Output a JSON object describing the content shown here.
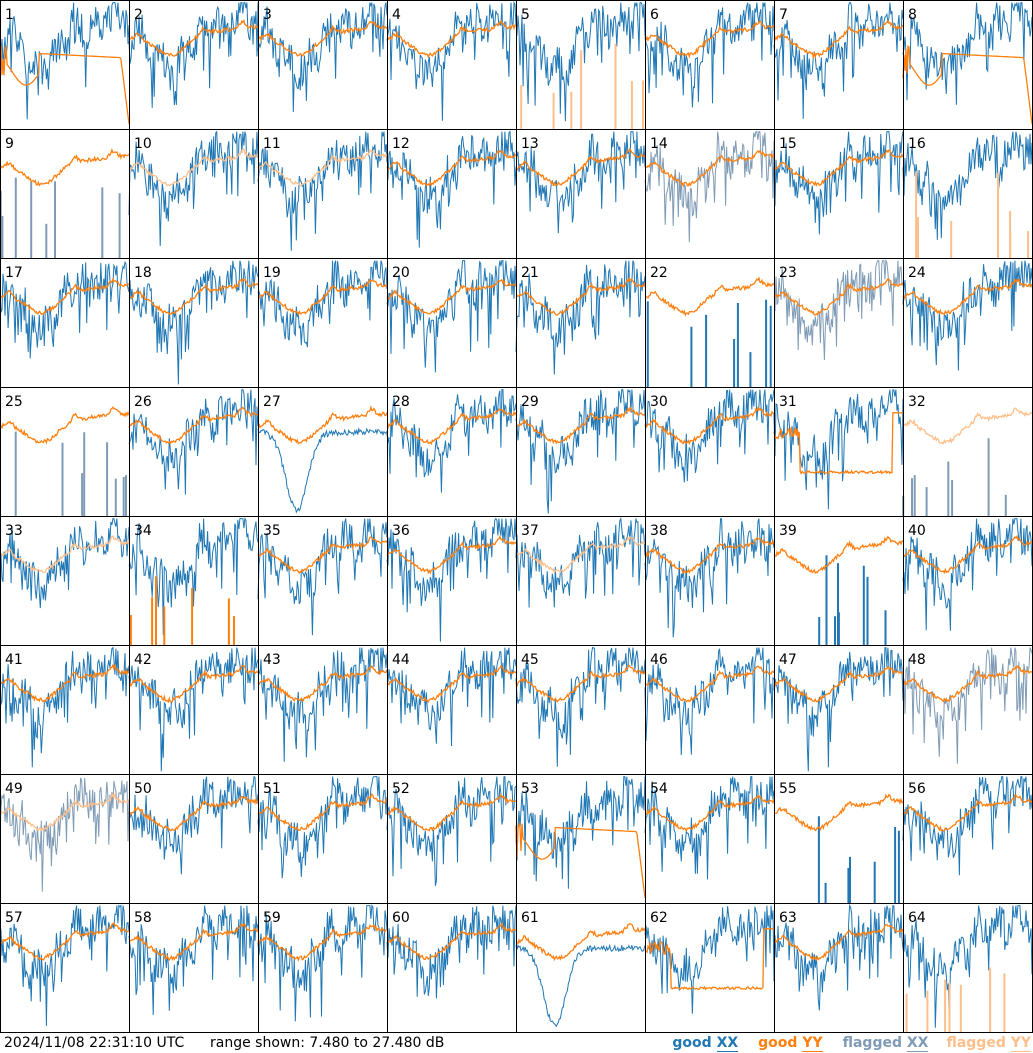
{
  "footer": {
    "timestamp": "2024/11/08 22:31:10 UTC",
    "range_text": "range shown: 7.480 to 27.480 dB"
  },
  "legend": [
    {
      "label": "good XX",
      "prefix": "good ",
      "suffix": "XX",
      "color": "#1f77b4"
    },
    {
      "label": "good YY",
      "prefix": "good ",
      "suffix": "YY",
      "color": "#ff7f0e"
    },
    {
      "label": "flagged XX",
      "prefix": "flagged ",
      "suffix": "XX",
      "color": "#7f9bb5"
    },
    {
      "label": "flagged YY",
      "prefix": "flagged ",
      "suffix": "YY",
      "color": "#ffbf8a"
    }
  ],
  "colors": {
    "good_xx": "#1f77b4",
    "good_yy": "#ff7f0e",
    "flagged_xx": "#7f9bb5",
    "flagged_yy": "#ffbf8a",
    "grid": "#000000"
  },
  "chart_data": {
    "type": "line",
    "layout": "8x8 small multiples",
    "y_range_db": [
      7.48,
      27.48
    ],
    "panels": [
      {
        "id": "1",
        "xx": "good",
        "yy": "good",
        "yy_shape": "hump_drop"
      },
      {
        "id": "2",
        "xx": "good",
        "yy": "good"
      },
      {
        "id": "3",
        "xx": "good",
        "yy": "good"
      },
      {
        "id": "4",
        "xx": "good",
        "yy": "good"
      },
      {
        "id": "5",
        "xx": "good",
        "yy": "flagged",
        "yy_shape": "spikes"
      },
      {
        "id": "6",
        "xx": "good",
        "yy": "good"
      },
      {
        "id": "7",
        "xx": "good",
        "yy": "good"
      },
      {
        "id": "8",
        "xx": "good",
        "yy": "good",
        "yy_shape": "hump_drop"
      },
      {
        "id": "9",
        "xx": "flagged",
        "yy": "good",
        "xx_shape": "spikes"
      },
      {
        "id": "10",
        "xx": "good",
        "yy": "flagged"
      },
      {
        "id": "11",
        "xx": "good",
        "yy": "flagged"
      },
      {
        "id": "12",
        "xx": "good",
        "yy": "good"
      },
      {
        "id": "13",
        "xx": "good",
        "yy": "good"
      },
      {
        "id": "14",
        "xx": "flagged",
        "yy": "good"
      },
      {
        "id": "15",
        "xx": "good",
        "yy": "good"
      },
      {
        "id": "16",
        "xx": "good",
        "yy": "flagged",
        "yy_shape": "spikes"
      },
      {
        "id": "17",
        "xx": "good",
        "yy": "good"
      },
      {
        "id": "18",
        "xx": "good",
        "yy": "good"
      },
      {
        "id": "19",
        "xx": "good",
        "yy": "good"
      },
      {
        "id": "20",
        "xx": "good",
        "yy": "good"
      },
      {
        "id": "21",
        "xx": "good",
        "yy": "good"
      },
      {
        "id": "22",
        "xx": "good",
        "yy": "good",
        "xx_shape": "spikes"
      },
      {
        "id": "23",
        "xx": "flagged",
        "yy": "good"
      },
      {
        "id": "24",
        "xx": "good",
        "yy": "good"
      },
      {
        "id": "25",
        "xx": "flagged",
        "yy": "good",
        "xx_shape": "spikes"
      },
      {
        "id": "26",
        "xx": "good",
        "yy": "good"
      },
      {
        "id": "27",
        "xx": "good",
        "yy": "good",
        "xx_shape": "dip"
      },
      {
        "id": "28",
        "xx": "good",
        "yy": "good"
      },
      {
        "id": "29",
        "xx": "good",
        "yy": "good"
      },
      {
        "id": "30",
        "xx": "good",
        "yy": "good"
      },
      {
        "id": "31",
        "xx": "good",
        "yy": "good",
        "yy_shape": "plateau"
      },
      {
        "id": "32",
        "xx": "flagged",
        "yy": "flagged",
        "xx_shape": "spikes"
      },
      {
        "id": "33",
        "xx": "good",
        "yy": "flagged"
      },
      {
        "id": "34",
        "xx": "good",
        "yy": "good",
        "yy_shape": "spikes"
      },
      {
        "id": "35",
        "xx": "good",
        "yy": "good"
      },
      {
        "id": "36",
        "xx": "good",
        "yy": "good"
      },
      {
        "id": "37",
        "xx": "good",
        "yy": "flagged"
      },
      {
        "id": "38",
        "xx": "good",
        "yy": "good"
      },
      {
        "id": "39",
        "xx": "good",
        "yy": "good",
        "xx_shape": "spikes"
      },
      {
        "id": "40",
        "xx": "good",
        "yy": "good"
      },
      {
        "id": "41",
        "xx": "good",
        "yy": "good"
      },
      {
        "id": "42",
        "xx": "good",
        "yy": "good"
      },
      {
        "id": "43",
        "xx": "good",
        "yy": "good"
      },
      {
        "id": "44",
        "xx": "good",
        "yy": "good"
      },
      {
        "id": "45",
        "xx": "good",
        "yy": "good"
      },
      {
        "id": "46",
        "xx": "good",
        "yy": "good"
      },
      {
        "id": "47",
        "xx": "good",
        "yy": "good"
      },
      {
        "id": "48",
        "xx": "flagged",
        "yy": "good"
      },
      {
        "id": "49",
        "xx": "flagged",
        "yy": "flagged"
      },
      {
        "id": "50",
        "xx": "good",
        "yy": "good"
      },
      {
        "id": "51",
        "xx": "good",
        "yy": "good"
      },
      {
        "id": "52",
        "xx": "good",
        "yy": "good"
      },
      {
        "id": "53",
        "xx": "good",
        "yy": "good",
        "yy_shape": "hump_drop"
      },
      {
        "id": "54",
        "xx": "good",
        "yy": "good"
      },
      {
        "id": "55",
        "xx": "good",
        "yy": "good",
        "xx_shape": "spikes"
      },
      {
        "id": "56",
        "xx": "good",
        "yy": "good"
      },
      {
        "id": "57",
        "xx": "good",
        "yy": "good"
      },
      {
        "id": "58",
        "xx": "good",
        "yy": "good"
      },
      {
        "id": "59",
        "xx": "good",
        "yy": "good"
      },
      {
        "id": "60",
        "xx": "good",
        "yy": "good"
      },
      {
        "id": "61",
        "xx": "good",
        "yy": "good",
        "xx_shape": "dip"
      },
      {
        "id": "62",
        "xx": "good",
        "yy": "good",
        "yy_shape": "plateau"
      },
      {
        "id": "63",
        "xx": "good",
        "yy": "good"
      },
      {
        "id": "64",
        "xx": "good",
        "yy": "flagged",
        "yy_shape": "spikes"
      }
    ]
  }
}
